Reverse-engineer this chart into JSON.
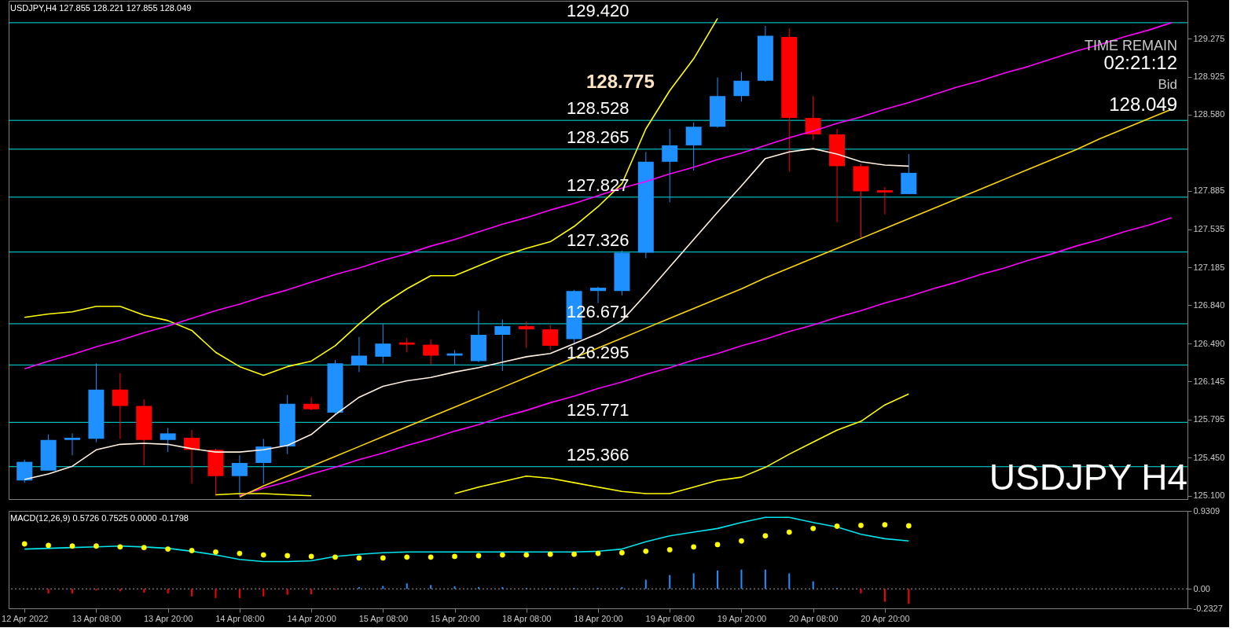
{
  "chart_data": [
    {
      "type": "candlestick",
      "title": "USDJPY,H4  127.855 128.221 127.855 128.049",
      "categories": [
        null,
        null,
        null,
        null,
        null,
        null,
        null,
        null,
        null,
        null,
        null,
        null,
        null,
        null,
        null,
        null,
        null,
        null,
        null,
        null,
        null,
        null,
        null,
        null,
        null,
        null,
        null,
        null,
        null,
        null,
        null,
        null,
        null,
        null,
        null,
        null,
        null,
        null,
        null,
        null,
        null,
        null,
        null,
        null,
        null,
        null,
        null,
        null,
        null
      ],
      "ohlc": [
        [
          125.24,
          125.43,
          125.22,
          125.41
        ],
        [
          125.33,
          125.66,
          125.33,
          125.61
        ],
        [
          125.61,
          125.67,
          125.47,
          125.63
        ],
        [
          125.62,
          126.31,
          125.59,
          126.07
        ],
        [
          126.07,
          126.22,
          125.62,
          125.92
        ],
        [
          125.92,
          125.98,
          125.38,
          125.61
        ],
        [
          125.61,
          125.72,
          125.5,
          125.67
        ],
        [
          125.63,
          125.7,
          125.21,
          125.52
        ],
        [
          125.52,
          125.53,
          125.1,
          125.28
        ],
        [
          125.28,
          125.47,
          125.1,
          125.4
        ],
        [
          125.4,
          125.62,
          125.21,
          125.55
        ],
        [
          125.55,
          126.02,
          125.48,
          125.94
        ],
        [
          125.94,
          126.0,
          125.88,
          125.89
        ],
        [
          125.86,
          126.34,
          125.84,
          126.31
        ],
        [
          126.29,
          126.55,
          126.23,
          126.38
        ],
        [
          126.37,
          126.67,
          126.31,
          126.49
        ],
        [
          126.5,
          126.54,
          126.41,
          126.48
        ],
        [
          126.48,
          126.53,
          126.3,
          126.38
        ],
        [
          126.38,
          126.43,
          126.3,
          126.4
        ],
        [
          126.33,
          126.79,
          126.32,
          126.57
        ],
        [
          126.57,
          126.71,
          126.24,
          126.65
        ],
        [
          126.65,
          126.69,
          126.45,
          126.62
        ],
        [
          126.62,
          126.66,
          126.43,
          126.47
        ],
        [
          126.53,
          126.98,
          126.48,
          126.97
        ],
        [
          126.97,
          127.01,
          126.86,
          127.0
        ],
        [
          126.97,
          127.34,
          126.93,
          127.32
        ],
        [
          127.32,
          128.24,
          127.27,
          128.15
        ],
        [
          128.15,
          128.45,
          127.78,
          128.3
        ],
        [
          128.3,
          128.51,
          128.07,
          128.47
        ],
        [
          128.47,
          128.92,
          128.46,
          128.75
        ],
        [
          128.75,
          128.97,
          128.7,
          128.89
        ],
        [
          128.89,
          129.39,
          128.88,
          129.3
        ],
        [
          129.29,
          129.37,
          128.06,
          128.55
        ],
        [
          128.55,
          128.75,
          128.35,
          128.4
        ],
        [
          128.4,
          128.45,
          127.6,
          128.11
        ],
        [
          128.11,
          128.13,
          127.46,
          127.88
        ],
        [
          127.89,
          127.92,
          127.67,
          127.87
        ],
        [
          127.855,
          128.221,
          127.855,
          128.049
        ],
        null,
        null,
        null,
        null,
        null,
        null,
        null,
        null,
        null,
        null,
        null
      ],
      "colors": [
        "#1e90ff",
        "#1e90ff",
        "#1e90ff",
        "#1e90ff",
        "#ff0000",
        "#ff0000",
        "#1e90ff",
        "#ff0000",
        "#ff0000",
        "#1e90ff",
        "#1e90ff",
        "#1e90ff",
        "#ff0000",
        "#1e90ff",
        "#1e90ff",
        "#1e90ff",
        "#ff0000",
        "#ff0000",
        "#1e90ff",
        "#1e90ff",
        "#1e90ff",
        "#ff0000",
        "#ff0000",
        "#1e90ff",
        "#1e90ff",
        "#1e90ff",
        "#1e90ff",
        "#1e90ff",
        "#1e90ff",
        "#1e90ff",
        "#1e90ff",
        "#1e90ff",
        "#ff0000",
        "#ff0000",
        "#ff0000",
        "#ff0000",
        "#ff0000",
        "#1e90ff",
        null,
        null,
        null,
        null,
        null,
        null,
        null,
        null,
        null,
        null,
        null
      ],
      "series": [
        {
          "type": "line",
          "color": "#fff0e0",
          "values": [
            125.25,
            125.3,
            125.37,
            125.52,
            125.57,
            125.58,
            125.57,
            125.53,
            125.5,
            125.5,
            125.52,
            125.56,
            125.66,
            125.84,
            126.0,
            126.1,
            126.15,
            126.18,
            126.23,
            126.27,
            126.32,
            126.37,
            126.4,
            126.49,
            126.58,
            126.7,
            126.94,
            127.19,
            127.44,
            127.69,
            127.93,
            128.18,
            128.24,
            128.27,
            128.22,
            128.15,
            128.12,
            128.11,
            null,
            null,
            null,
            null,
            null,
            null,
            null,
            null,
            null,
            null,
            null
          ]
        },
        {
          "type": "line",
          "color": "#ffff00",
          "values": [
            126.73,
            126.76,
            126.78,
            126.83,
            126.83,
            126.75,
            126.7,
            126.61,
            126.41,
            126.28,
            126.2,
            126.28,
            126.33,
            126.47,
            126.67,
            126.85,
            126.99,
            127.11,
            127.11,
            127.2,
            127.29,
            127.36,
            127.42,
            127.56,
            127.74,
            127.95,
            128.45,
            128.8,
            129.09,
            129.46,
            null,
            null,
            null,
            null,
            null,
            null,
            null,
            null,
            null,
            null,
            null,
            null,
            null,
            null,
            null,
            null,
            null,
            null,
            null
          ]
        },
        {
          "type": "line",
          "color": "#ffff00",
          "values": [
            null,
            null,
            null,
            null,
            null,
            null,
            null,
            null,
            125.11,
            125.12,
            125.12,
            125.11,
            125.1,
            null,
            null,
            null,
            null,
            null,
            125.12,
            125.18,
            125.23,
            125.28,
            125.26,
            125.22,
            125.18,
            125.14,
            125.12,
            125.12,
            125.18,
            125.24,
            125.27,
            125.36,
            125.48,
            125.59,
            125.7,
            125.78,
            125.93,
            126.03,
            null,
            null,
            null,
            null,
            null,
            null,
            null,
            null,
            null,
            null,
            null
          ]
        },
        {
          "type": "line",
          "color": "#ff00ff",
          "values": [
            126.26,
            126.33,
            126.39,
            126.46,
            126.52,
            126.59,
            126.65,
            126.72,
            126.79,
            126.85,
            126.92,
            126.98,
            127.05,
            127.12,
            127.18,
            127.25,
            127.31,
            127.38,
            127.44,
            127.51,
            127.58,
            127.64,
            127.71,
            127.77,
            127.84,
            127.91,
            127.97,
            128.04,
            128.1,
            128.17,
            128.23,
            128.3,
            128.37,
            128.43,
            128.5,
            128.56,
            128.63,
            128.69,
            128.76,
            128.83,
            128.89,
            128.96,
            129.02,
            129.09,
            129.16,
            129.22,
            129.29,
            129.35,
            129.42
          ]
        },
        {
          "type": "line",
          "color": "#ff00ff",
          "values": [
            null,
            null,
            null,
            null,
            null,
            null,
            null,
            null,
            null,
            125.1,
            125.17,
            125.23,
            125.3,
            125.36,
            125.43,
            125.49,
            125.56,
            125.62,
            125.69,
            125.75,
            125.82,
            125.88,
            125.95,
            126.01,
            126.08,
            126.14,
            126.21,
            126.27,
            126.34,
            126.4,
            126.47,
            126.53,
            126.6,
            126.66,
            126.73,
            126.79,
            126.86,
            126.92,
            126.99,
            127.05,
            127.12,
            127.18,
            127.25,
            127.31,
            127.38,
            127.44,
            127.51,
            127.57,
            127.64
          ]
        },
        {
          "type": "line",
          "color": "#ffd700",
          "values": [
            null,
            null,
            null,
            null,
            null,
            null,
            null,
            null,
            null,
            125.09,
            125.19,
            125.28,
            125.37,
            125.46,
            125.55,
            125.64,
            125.73,
            125.82,
            125.91,
            126.0,
            126.09,
            126.18,
            126.27,
            126.36,
            126.45,
            126.54,
            126.63,
            126.72,
            126.81,
            126.9,
            126.99,
            127.09,
            127.18,
            127.27,
            127.36,
            127.45,
            127.54,
            127.63,
            127.72,
            127.81,
            127.9,
            127.99,
            128.08,
            128.17,
            128.26,
            128.36,
            128.45,
            128.54,
            128.63
          ]
        }
      ],
      "ylim": [
        125.07,
        129.62
      ],
      "yticks": [
        129.275,
        128.925,
        {
          "value": 128.58,
          "label": "128.580"
        },
        127.885,
        127.535,
        127.185,
        {
          "value": 126.84,
          "label": "126.840"
        },
        {
          "value": 126.49,
          "label": "126.490"
        },
        126.145,
        125.795,
        {
          "value": 125.45,
          "label": "125.450"
        },
        {
          "value": 125.1,
          "label": "125.100"
        }
      ],
      "tick_labels": "y",
      "ref_lines": [
        {
          "axis": "y",
          "value": 129.42,
          "label": "129.420",
          "color": "#00e5e5"
        },
        {
          "axis": "y",
          "value": 128.528,
          "label": "128.528",
          "color": "#00e5e5"
        },
        {
          "axis": "y",
          "value": 128.265,
          "label": "128.265",
          "color": "#00e5e5"
        },
        {
          "axis": "y",
          "value": 127.827,
          "label": "127.827",
          "color": "#00e5e5"
        },
        {
          "axis": "y",
          "value": 127.326,
          "label": "127.326",
          "color": "#00e5e5"
        },
        {
          "axis": "y",
          "value": 126.671,
          "label": "126.671",
          "color": "#00e5e5"
        },
        {
          "axis": "y",
          "value": 126.295,
          "label": "126.295",
          "color": "#00e5e5"
        },
        {
          "axis": "y",
          "value": 125.771,
          "label": "125.771",
          "color": "#00e5e5"
        },
        {
          "axis": "y",
          "value": 125.366,
          "label": "125.366",
          "color": "#00e5e5"
        }
      ],
      "annotations": [
        "128.775",
        "TIME REMAIN",
        "02:21:12",
        "Bid",
        "128.049",
        "USDJPY H4"
      ]
    },
    {
      "type": "line",
      "title": "MACD(12,26,9) 0.5726 0.7525 0.0000 -0.1798",
      "categories": [
        "12 Apr 2022",
        null,
        null,
        "13 Apr 08:00",
        null,
        null,
        "13 Apr 20:00",
        null,
        null,
        "14 Apr 08:00",
        null,
        null,
        "14 Apr 20:00",
        null,
        null,
        "15 Apr 08:00",
        null,
        null,
        "15 Apr 20:00",
        null,
        null,
        "18 Apr 08:00",
        null,
        null,
        "18 Apr 20:00",
        null,
        null,
        "19 Apr 08:00",
        null,
        null,
        "19 Apr 20:00",
        null,
        null,
        "20 Apr 08:00",
        null,
        null,
        "20 Apr 20:00",
        null,
        null,
        null,
        null,
        null,
        null,
        null,
        null,
        null,
        null,
        null,
        null
      ],
      "series": [
        {
          "type": "bar",
          "colors": [
            null,
            "#ff0000",
            "#ff0000",
            "#ff0000",
            "#ff0000",
            "#ff0000",
            "#ff0000",
            "#ff0000",
            "#ff0000",
            "#ff0000",
            "#ff0000",
            "#ff0000",
            "#ff0000",
            "#ff0000",
            "#1e90ff",
            "#1e90ff",
            "#1e90ff",
            "#1e90ff",
            "#1e90ff",
            "#1e90ff",
            "#1e90ff",
            "#1e90ff",
            "#1e90ff",
            "#1e90ff",
            "#1e90ff",
            "#1e90ff",
            "#1e90ff",
            "#1e90ff",
            "#1e90ff",
            "#1e90ff",
            "#1e90ff",
            "#1e90ff",
            "#1e90ff",
            "#1e90ff",
            "#1e90ff",
            "#ff0000",
            "#ff0000",
            "#ff0000",
            null,
            null,
            null,
            null,
            null,
            null,
            null,
            null,
            null,
            null,
            null
          ],
          "values": [
            null,
            -0.055,
            -0.055,
            -0.02,
            -0.03,
            -0.045,
            -0.055,
            -0.09,
            -0.11,
            -0.11,
            -0.09,
            -0.07,
            -0.065,
            -0.01,
            0.02,
            0.035,
            0.065,
            0.045,
            0.03,
            0.02,
            0.02,
            0.01,
            0.01,
            0.01,
            0.01,
            0.02,
            0.11,
            0.165,
            0.185,
            0.22,
            0.23,
            0.23,
            0.185,
            0.09,
            0.01,
            -0.055,
            -0.155,
            -0.1798,
            null,
            null,
            null,
            null,
            null,
            null,
            null,
            null,
            null,
            null,
            null
          ]
        },
        {
          "type": "line",
          "color": "#00e5ee",
          "values": [
            0.475,
            0.484,
            0.493,
            0.502,
            0.511,
            0.5,
            0.484,
            0.449,
            0.405,
            0.352,
            0.325,
            0.325,
            0.335,
            0.387,
            0.413,
            0.431,
            0.44,
            0.44,
            0.44,
            0.44,
            0.44,
            0.44,
            0.44,
            0.44,
            0.449,
            0.475,
            0.563,
            0.633,
            0.677,
            0.721,
            0.792,
            0.854,
            0.854,
            0.792,
            0.739,
            0.651,
            0.599,
            0.5726,
            null,
            null,
            null,
            null,
            null,
            null,
            null,
            null,
            null,
            null,
            null
          ]
        },
        {
          "type": "scatter",
          "color": "#ffff00",
          "marker": "circle",
          "values": [
            0.537,
            0.519,
            0.511,
            0.511,
            0.501,
            0.493,
            0.475,
            0.457,
            0.44,
            0.423,
            0.405,
            0.396,
            0.387,
            0.379,
            0.369,
            0.369,
            0.379,
            0.379,
            0.387,
            0.396,
            0.405,
            0.405,
            0.413,
            0.413,
            0.423,
            0.431,
            0.449,
            0.467,
            0.501,
            0.528,
            0.572,
            0.633,
            0.677,
            0.721,
            0.748,
            0.757,
            0.765,
            0.7525,
            null,
            null,
            null,
            null,
            null,
            null,
            null,
            null,
            null,
            null,
            null
          ]
        }
      ],
      "ylim": [
        -0.2327,
        0.9309
      ],
      "yticks": [
        0.9309,
        {
          "value": 0,
          "label": "0.00"
        },
        -0.2327
      ],
      "ref_lines": [
        {
          "axis": "y",
          "value": 0,
          "color": "#a0a0a0",
          "line_style": "dotted"
        }
      ]
    }
  ]
}
